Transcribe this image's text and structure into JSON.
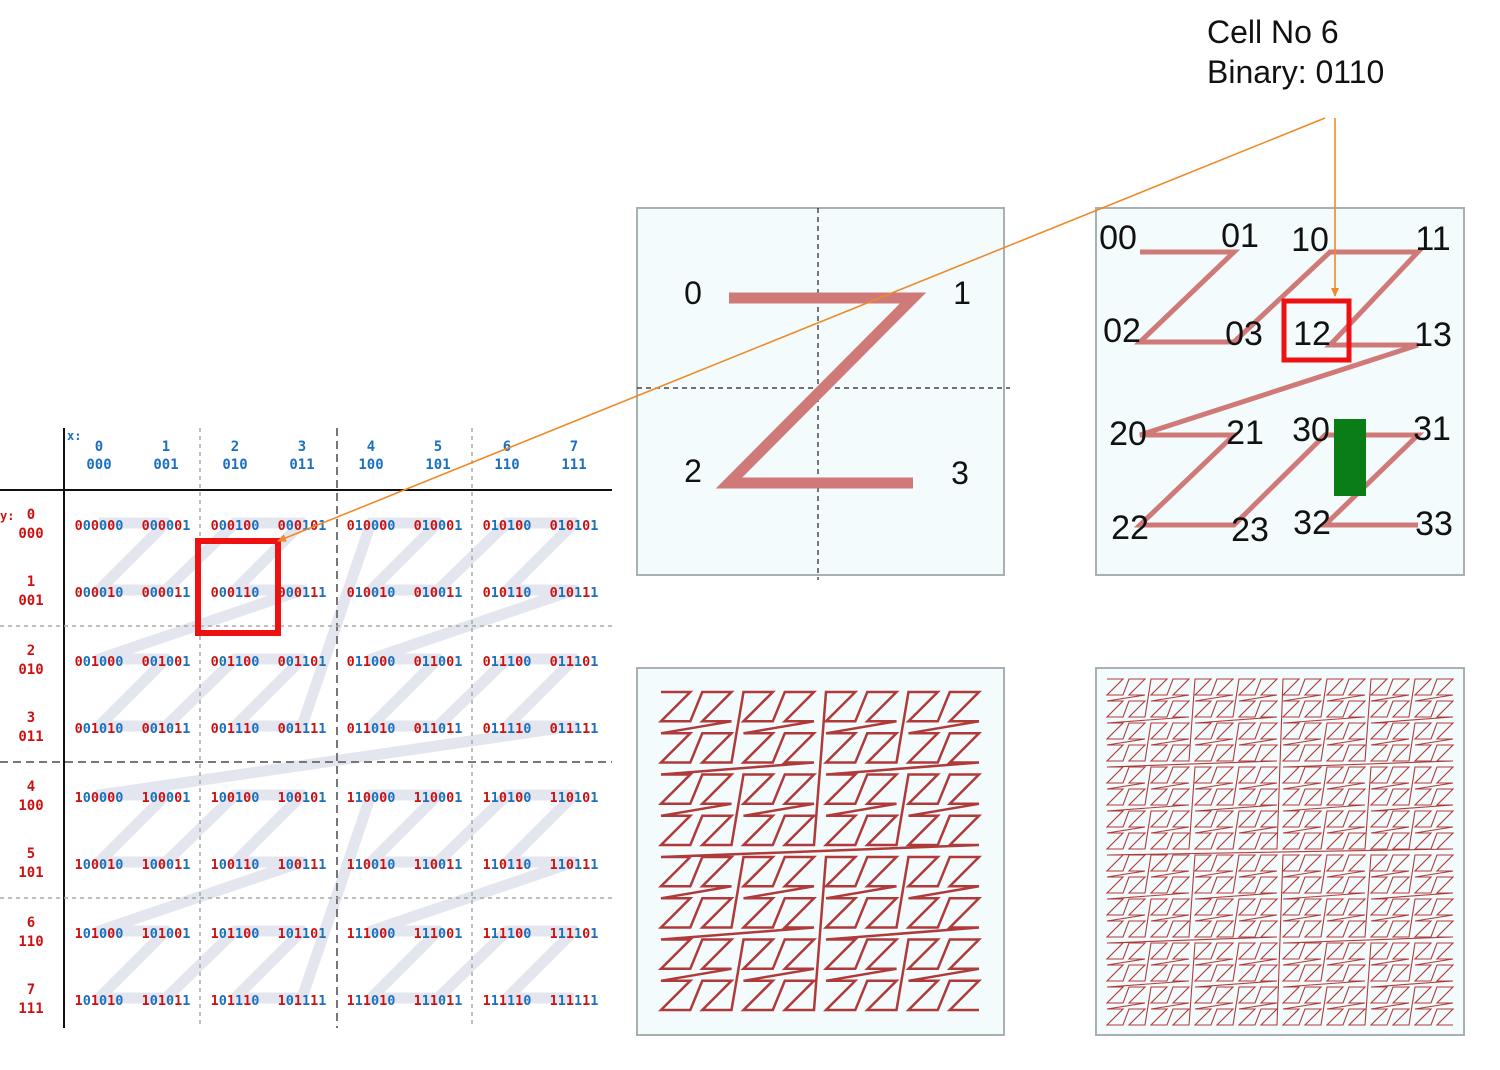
{
  "callout": {
    "title": "Cell No 6",
    "binary": "Binary: 0110"
  },
  "grid": {
    "x_axis_label": "x:",
    "y_axis_label": "y:",
    "x_headers": [
      {
        "dec": "0",
        "bin": "000"
      },
      {
        "dec": "1",
        "bin": "001"
      },
      {
        "dec": "2",
        "bin": "010"
      },
      {
        "dec": "3",
        "bin": "011"
      },
      {
        "dec": "4",
        "bin": "100"
      },
      {
        "dec": "5",
        "bin": "101"
      },
      {
        "dec": "6",
        "bin": "110"
      },
      {
        "dec": "7",
        "bin": "111"
      }
    ],
    "y_headers": [
      {
        "dec": "0",
        "bin": "000"
      },
      {
        "dec": "1",
        "bin": "001"
      },
      {
        "dec": "2",
        "bin": "010"
      },
      {
        "dec": "3",
        "bin": "011"
      },
      {
        "dec": "4",
        "bin": "100"
      },
      {
        "dec": "5",
        "bin": "101"
      },
      {
        "dec": "6",
        "bin": "110"
      },
      {
        "dec": "7",
        "bin": "111"
      }
    ],
    "cells": [
      [
        "000000",
        "000001",
        "000100",
        "000101",
        "010000",
        "010001",
        "010100",
        "010101"
      ],
      [
        "000010",
        "000011",
        "000110",
        "000111",
        "010010",
        "010011",
        "010110",
        "010111"
      ],
      [
        "001000",
        "001001",
        "001100",
        "001101",
        "011000",
        "011001",
        "011100",
        "011101"
      ],
      [
        "001010",
        "001011",
        "001110",
        "001111",
        "011010",
        "011011",
        "011110",
        "011111"
      ],
      [
        "100000",
        "100001",
        "100100",
        "100101",
        "110000",
        "110001",
        "110100",
        "110101"
      ],
      [
        "100010",
        "100011",
        "100110",
        "100111",
        "110010",
        "110011",
        "110110",
        "110111"
      ],
      [
        "101000",
        "101001",
        "101100",
        "101101",
        "111000",
        "111001",
        "111100",
        "111101"
      ],
      [
        "101010",
        "101011",
        "101110",
        "101111",
        "111010",
        "111011",
        "111110",
        "111111"
      ]
    ],
    "highlight": {
      "row": 1,
      "col": 2
    }
  },
  "level1": {
    "labels": [
      "0",
      "1",
      "2",
      "3"
    ]
  },
  "level2": {
    "labels": [
      "00",
      "01",
      "10",
      "11",
      "02",
      "03",
      "12",
      "13",
      "20",
      "21",
      "30",
      "31",
      "22",
      "23",
      "32",
      "33"
    ],
    "highlight_label": "12"
  },
  "colors": {
    "red_bit": "#cc1111",
    "blue_bit": "#1a6fc0",
    "curve": "#b03a3a",
    "curve_thick": "#cf7a78",
    "panel_bg": "#f3fbfc",
    "panel_border": "#a9b0b2",
    "highlight": "#ee1111",
    "arrow": "#ee8a2a",
    "marker": "#0b7d16"
  }
}
